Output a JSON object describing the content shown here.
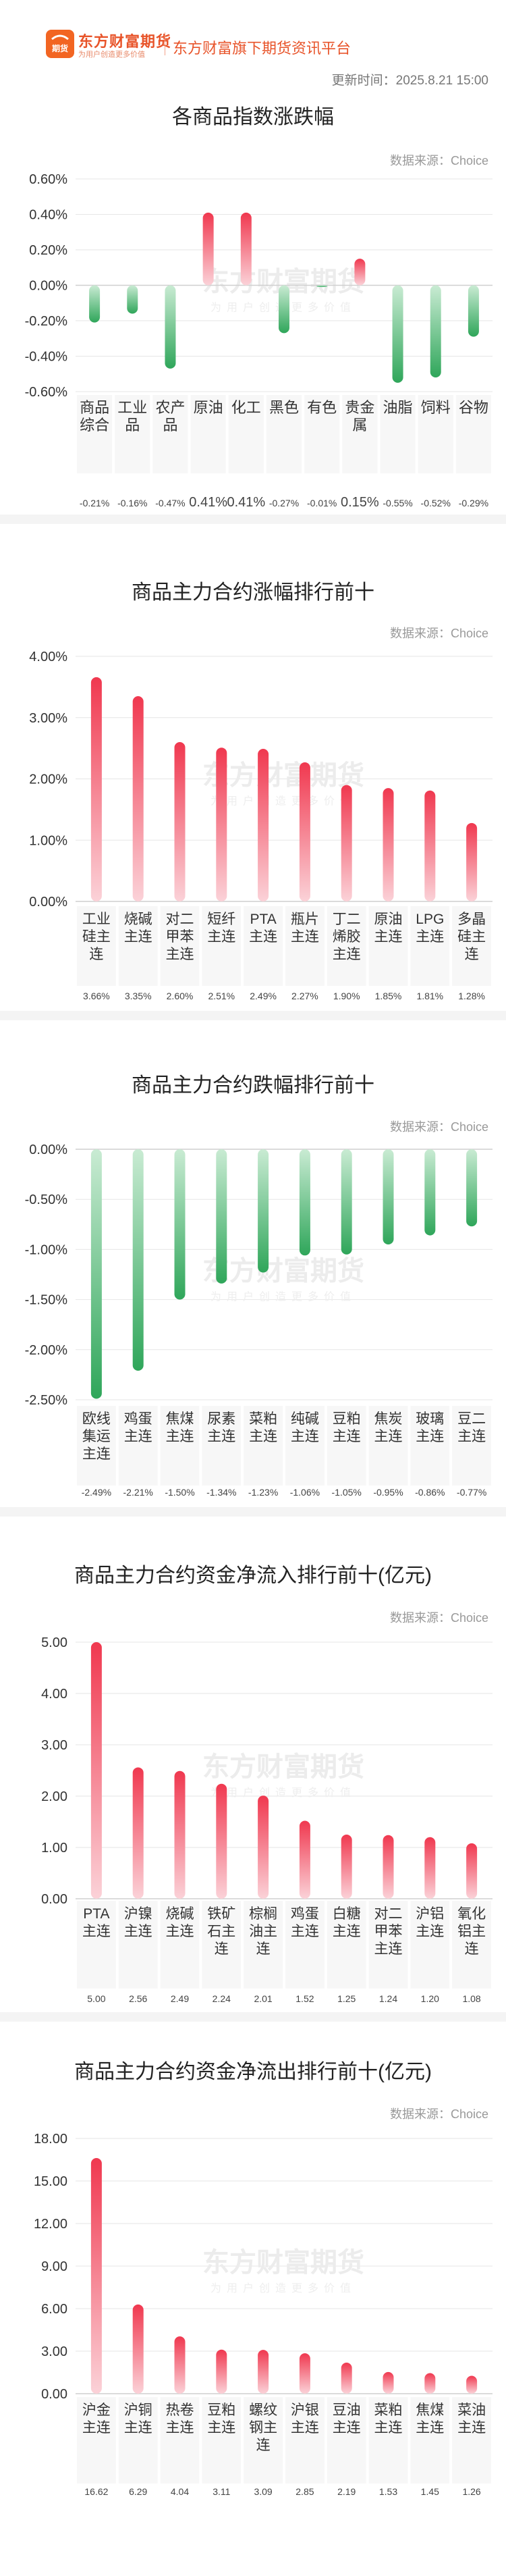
{
  "header": {
    "brand": "东方财富期货",
    "brand_sub": "为用户创造更多价值",
    "platform": "东方财富旗下期货资讯平台",
    "logo_text": "期货",
    "update_time": "更新时间：2025.8.21 15:00"
  },
  "watermark": {
    "main": "东方财富期货",
    "sub": "为用户创造更多价值"
  },
  "colors": {
    "up": "#f0384f",
    "down": "#2fa65a",
    "brand": "#e8542a"
  },
  "charts": [
    {
      "title": "各商品指数涨跌幅",
      "source": "数据来源：Choice",
      "chart_data": {
        "type": "bar",
        "categories": [
          "商品综合",
          "工业品",
          "农产品",
          "原油",
          "化工",
          "黑色",
          "有色",
          "贵金属",
          "油脂",
          "饲料",
          "谷物"
        ],
        "category_lines": [
          [
            "商品",
            "综合"
          ],
          [
            "工业",
            "品"
          ],
          [
            "农产",
            "品"
          ],
          [
            "原油"
          ],
          [
            "化工"
          ],
          [
            "黑色"
          ],
          [
            "有色"
          ],
          [
            "贵金",
            "属"
          ],
          [
            "油脂"
          ],
          [
            "饲料"
          ],
          [
            "谷物"
          ]
        ],
        "values": [
          -0.21,
          -0.16,
          -0.47,
          0.41,
          0.41,
          -0.27,
          -0.01,
          0.15,
          -0.55,
          -0.52,
          -0.29
        ],
        "value_labels": [
          "-0.21%",
          "-0.16%",
          "-0.47%",
          "0.41%",
          "0.41%",
          "-0.27%",
          "-0.01%",
          "0.15%",
          "-0.55%",
          "-0.52%",
          "-0.29%"
        ],
        "yticks": [
          "0.60%",
          "0.40%",
          "0.20%",
          "0.00%",
          "-0.20%",
          "-0.40%",
          "-0.60%"
        ],
        "ylim": [
          -0.6,
          0.6
        ]
      }
    },
    {
      "title": "商品主力合约涨幅排行前十",
      "source": "数据来源：Choice",
      "chart_data": {
        "type": "bar",
        "categories": [
          "工业硅主连",
          "烧碱主连",
          "对二甲苯主连",
          "短纤主连",
          "PTA主连",
          "瓶片主连",
          "丁二烯胶主连",
          "原油主连",
          "LPG主连",
          "多晶硅主连"
        ],
        "category_lines": [
          [
            "工业",
            "硅主",
            "连"
          ],
          [
            "烧碱",
            "主连"
          ],
          [
            "对二",
            "甲苯",
            "主连"
          ],
          [
            "短纤",
            "主连"
          ],
          [
            "PTA",
            "主连"
          ],
          [
            "瓶片",
            "主连"
          ],
          [
            "丁二",
            "烯胶",
            "主连"
          ],
          [
            "原油",
            "主连"
          ],
          [
            "LPG",
            "主连"
          ],
          [
            "多晶",
            "硅主",
            "连"
          ]
        ],
        "values": [
          3.66,
          3.35,
          2.6,
          2.51,
          2.49,
          2.27,
          1.9,
          1.85,
          1.81,
          1.28
        ],
        "value_labels": [
          "3.66%",
          "3.35%",
          "2.60%",
          "2.51%",
          "2.49%",
          "2.27%",
          "1.90%",
          "1.85%",
          "1.81%",
          "1.28%"
        ],
        "yticks": [
          "4.00%",
          "3.00%",
          "2.00%",
          "1.00%",
          "0.00%"
        ],
        "ylim": [
          0,
          4
        ]
      }
    },
    {
      "title": "商品主力合约跌幅排行前十",
      "source": "数据来源：Choice",
      "chart_data": {
        "type": "bar",
        "categories": [
          "欧线集运主连",
          "鸡蛋主连",
          "焦煤主连",
          "尿素主连",
          "菜粕主连",
          "纯碱主连",
          "豆粕主连",
          "焦炭主连",
          "玻璃主连",
          "豆二主连"
        ],
        "category_lines": [
          [
            "欧线",
            "集运",
            "主连"
          ],
          [
            "鸡蛋",
            "主连"
          ],
          [
            "焦煤",
            "主连"
          ],
          [
            "尿素",
            "主连"
          ],
          [
            "菜粕",
            "主连"
          ],
          [
            "纯碱",
            "主连"
          ],
          [
            "豆粕",
            "主连"
          ],
          [
            "焦炭",
            "主连"
          ],
          [
            "玻璃",
            "主连"
          ],
          [
            "豆二",
            "主连"
          ]
        ],
        "values": [
          -2.49,
          -2.21,
          -1.5,
          -1.34,
          -1.23,
          -1.06,
          -1.05,
          -0.95,
          -0.86,
          -0.77
        ],
        "value_labels": [
          "-2.49%",
          "-2.21%",
          "-1.50%",
          "-1.34%",
          "-1.23%",
          "-1.06%",
          "-1.05%",
          "-0.95%",
          "-0.86%",
          "-0.77%"
        ],
        "yticks": [
          "0.00%",
          "-0.50%",
          "-1.00%",
          "-1.50%",
          "-2.00%",
          "-2.50%"
        ],
        "ylim": [
          -2.5,
          0
        ]
      }
    },
    {
      "title": "商品主力合约资金净流入排行前十(亿元)",
      "source": "数据来源：Choice",
      "chart_data": {
        "type": "bar",
        "categories": [
          "PTA主连",
          "沪镍主连",
          "烧碱主连",
          "铁矿石主连",
          "棕榈油主连",
          "鸡蛋主连",
          "白糖主连",
          "对二甲苯主连",
          "沪铝主连",
          "氧化铝主连"
        ],
        "category_lines": [
          [
            "PTA",
            "主连"
          ],
          [
            "沪镍",
            "主连"
          ],
          [
            "烧碱",
            "主连"
          ],
          [
            "铁矿",
            "石主",
            "连"
          ],
          [
            "棕榈",
            "油主",
            "连"
          ],
          [
            "鸡蛋",
            "主连"
          ],
          [
            "白糖",
            "主连"
          ],
          [
            "对二",
            "甲苯",
            "主连"
          ],
          [
            "沪铝",
            "主连"
          ],
          [
            "氧化",
            "铝主",
            "连"
          ]
        ],
        "values": [
          5.0,
          2.56,
          2.49,
          2.24,
          2.01,
          1.52,
          1.25,
          1.24,
          1.2,
          1.08
        ],
        "value_labels": [
          "5.00",
          "2.56",
          "2.49",
          "2.24",
          "2.01",
          "1.52",
          "1.25",
          "1.24",
          "1.20",
          "1.08"
        ],
        "yticks": [
          "5.00",
          "4.00",
          "3.00",
          "2.00",
          "1.00",
          "0.00"
        ],
        "ylim": [
          0,
          5
        ]
      }
    },
    {
      "title": "商品主力合约资金净流出排行前十(亿元)",
      "source": "数据来源：Choice",
      "chart_data": {
        "type": "bar",
        "categories": [
          "沪金主连",
          "沪铜主连",
          "热卷主连",
          "豆粕主连",
          "螺纹钢主连",
          "沪银主连",
          "豆油主连",
          "菜粕主连",
          "焦煤主连",
          "菜油主连"
        ],
        "category_lines": [
          [
            "沪金",
            "主连"
          ],
          [
            "沪铜",
            "主连"
          ],
          [
            "热卷",
            "主连"
          ],
          [
            "豆粕",
            "主连"
          ],
          [
            "螺纹",
            "钢主",
            "连"
          ],
          [
            "沪银",
            "主连"
          ],
          [
            "豆油",
            "主连"
          ],
          [
            "菜粕",
            "主连"
          ],
          [
            "焦煤",
            "主连"
          ],
          [
            "菜油",
            "主连"
          ]
        ],
        "values": [
          16.62,
          6.29,
          4.04,
          3.11,
          3.09,
          2.85,
          2.19,
          1.53,
          1.45,
          1.26
        ],
        "value_labels": [
          "16.62",
          "6.29",
          "4.04",
          "3.11",
          "3.09",
          "2.85",
          "2.19",
          "1.53",
          "1.45",
          "1.26"
        ],
        "yticks": [
          "18.00",
          "15.00",
          "12.00",
          "9.00",
          "6.00",
          "3.00",
          "0.00"
        ],
        "ylim": [
          0,
          18
        ]
      }
    }
  ]
}
